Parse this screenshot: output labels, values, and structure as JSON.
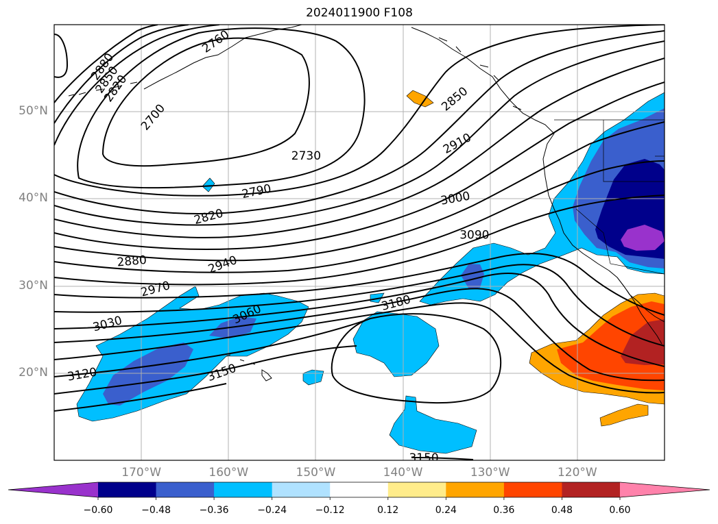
{
  "title": "2024011900 F108",
  "lon_ticks": [
    {
      "lon": -170,
      "label": "170°W"
    },
    {
      "lon": -160,
      "label": "160°W"
    },
    {
      "lon": -150,
      "label": "150°W"
    },
    {
      "lon": -140,
      "label": "140°W"
    },
    {
      "lon": -130,
      "label": "130°W"
    },
    {
      "lon": -120,
      "label": "120°W"
    }
  ],
  "lat_ticks": [
    {
      "lat": 50,
      "label": "50°N"
    },
    {
      "lat": 40,
      "label": "40°N"
    },
    {
      "lat": 30,
      "label": "30°N"
    },
    {
      "lat": 20,
      "label": "20°N"
    }
  ],
  "map_extent": {
    "lon_min": -180,
    "lon_max": -110,
    "lat_min": 10,
    "lat_max": 60
  },
  "gridlines": true,
  "contour_labels": [
    {
      "text": "2880",
      "lon": -174.5,
      "lat": 55.2,
      "rot": -55
    },
    {
      "text": "2850",
      "lon": -174.0,
      "lat": 53.7,
      "rot": -55
    },
    {
      "text": "2820",
      "lon": -173.0,
      "lat": 52.7,
      "rot": -55
    },
    {
      "text": "2760",
      "lon": -161.5,
      "lat": 58.1,
      "rot": -35
    },
    {
      "text": "2700",
      "lon": -168.7,
      "lat": 49.4,
      "rot": -50
    },
    {
      "text": "2730",
      "lon": -151.1,
      "lat": 45.0,
      "rot": 0
    },
    {
      "text": "2790",
      "lon": -156.8,
      "lat": 40.9,
      "rot": -12
    },
    {
      "text": "2820",
      "lon": -162.3,
      "lat": 38.0,
      "rot": -15
    },
    {
      "text": "2880",
      "lon": -171.1,
      "lat": 32.9,
      "rot": -5
    },
    {
      "text": "2940",
      "lon": -160.7,
      "lat": 32.5,
      "rot": -20
    },
    {
      "text": "2970",
      "lon": -168.4,
      "lat": 29.7,
      "rot": -15
    },
    {
      "text": "3030",
      "lon": -173.9,
      "lat": 25.7,
      "rot": -15
    },
    {
      "text": "3060",
      "lon": -157.9,
      "lat": 26.8,
      "rot": -25
    },
    {
      "text": "3120",
      "lon": -176.8,
      "lat": 19.9,
      "rot": -10
    },
    {
      "text": "3150",
      "lon": -160.8,
      "lat": 20.1,
      "rot": -20
    },
    {
      "text": "3180",
      "lon": -140.8,
      "lat": 28.1,
      "rot": -15
    },
    {
      "text": "3150",
      "lon": -137.6,
      "lat": 10.3,
      "rot": 0
    },
    {
      "text": "2850",
      "lon": -134.1,
      "lat": 51.5,
      "rot": -40
    },
    {
      "text": "2910",
      "lon": -133.8,
      "lat": 46.4,
      "rot": -28
    },
    {
      "text": "3000",
      "lon": -134.0,
      "lat": 40.1,
      "rot": -10
    },
    {
      "text": "3090",
      "lon": -131.8,
      "lat": 35.9,
      "rot": 0
    }
  ],
  "colorbar": {
    "colors": [
      "#9932cc",
      "#00008b",
      "#3a5fcd",
      "#00bfff",
      "#b0e2ff",
      "#ffffff",
      "#ffec8b",
      "#ffa500",
      "#ff4500",
      "#b22222",
      "#ff82ab"
    ],
    "extend": "both",
    "tick_labels": [
      "−0.60",
      "−0.48",
      "−0.36",
      "−0.24",
      "−0.12",
      "0.12",
      "0.24",
      "0.36",
      "0.48",
      "0.60"
    ]
  }
}
